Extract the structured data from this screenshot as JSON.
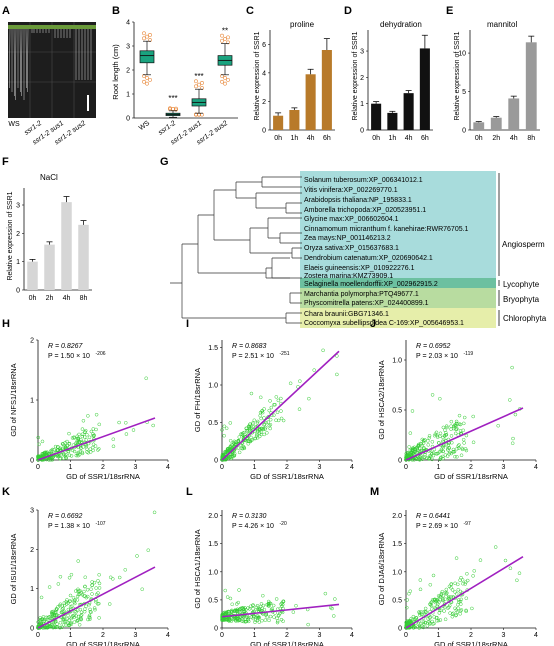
{
  "panels": {
    "A": {
      "letter": "A",
      "labels": [
        "WS",
        "ssr1-2",
        "ssr1-2 sus1",
        "ssr1-2 sus2"
      ]
    },
    "B": {
      "letter": "B",
      "ylabel": "Root length (cm)",
      "yticks": [
        "0",
        "1",
        "2",
        "3",
        "4"
      ],
      "categories": [
        "WS",
        "ssr1-2",
        "ssr1-2 sus1",
        "ssr1-2 sus2"
      ],
      "stars": [
        "",
        "***",
        "***",
        "**"
      ]
    },
    "C": {
      "letter": "C",
      "title": "proline",
      "ylabel": "Relative expression of SSR1",
      "categories": [
        "0h",
        "1h",
        "4h",
        "6h"
      ],
      "yticks": [
        "0",
        "2",
        "4",
        "6"
      ]
    },
    "D": {
      "letter": "D",
      "title": "dehydration",
      "ylabel": "Relative expression of SSR1",
      "categories": [
        "0h",
        "1h",
        "4h",
        "6h"
      ],
      "yticks": [
        "0",
        "1",
        "2",
        "3"
      ]
    },
    "E": {
      "letter": "E",
      "title": "mannitol",
      "ylabel": "Relative expression of SSR1",
      "categories": [
        "0h",
        "2h",
        "4h",
        "8h"
      ],
      "yticks": [
        "0",
        "5",
        "10"
      ]
    },
    "F": {
      "letter": "F",
      "title": "NaCl",
      "ylabel": "Relative expression of SSR1",
      "categories": [
        "0h",
        "2h",
        "4h",
        "8h"
      ],
      "yticks": [
        "0",
        "1",
        "2",
        "3"
      ]
    },
    "G": {
      "letter": "G",
      "species": [
        "Solanum tuberosum:XP_006341012.1",
        "Vitis vinifera:XP_002269770.1",
        "Arabidopsis thaliana:NP_195833.1",
        "Amborella trichopoda:XP_020523951.1",
        "Glycine max:XP_006602604.1",
        "Cinnamomum micranthum f. kanehirae:RWR76705.1",
        "Zea mays:NP_001146213.2",
        "Oryza sativa:XP_015637683.1",
        "Dendrobium catenatum:XP_020690642.1",
        "Elaeis guineensis:XP_010922276.1",
        "Zostera marina:KMZ73909.1",
        "Selaginella moellendorffii:XP_002962915.2",
        "Marchantia polymorpha:PTQ49677.1",
        "Physcomitrella patens:XP_024400899.1",
        "Chara braunii:GBG71346.1",
        "Coccomyxa subellipsoidea C-169:XP_005646953.1"
      ],
      "groups": [
        "Angiosperm",
        "Lycophyte",
        "Bryophyta",
        "Chlorophyta"
      ]
    },
    "H": {
      "letter": "H",
      "r": "R = 0.8267",
      "p": "P = 1.50 × 10",
      "pexp": "-206",
      "ylabel": "GD of NFS1/18srRNA",
      "xlabel": "GD of SSR1/18srRNA",
      "xticks": [
        "0",
        "1",
        "2",
        "3",
        "4"
      ],
      "yticks": [
        "0",
        "1",
        "2"
      ]
    },
    "I": {
      "letter": "I",
      "r": "R = 0.8683",
      "p": "P = 2.51 × 10",
      "pexp": "-251",
      "ylabel": "GD of FH/18srRNA",
      "xlabel": "GD of SSR1/18srRNA",
      "xticks": [
        "0",
        "1",
        "2",
        "3",
        "4"
      ],
      "yticks": [
        "0",
        "0.5",
        "1.0",
        "1.5"
      ]
    },
    "J": {
      "letter": "J",
      "r": "R = 0.6952",
      "p": "P = 2.03 × 10",
      "pexp": "-119",
      "ylabel": "GD of HSCA2/18srRNA",
      "xlabel": "GD of SSR1/18srRNA",
      "xticks": [
        "0",
        "1",
        "2",
        "3",
        "4"
      ],
      "yticks": [
        "0",
        "0.5",
        "1.0"
      ]
    },
    "K": {
      "letter": "K",
      "r": "R = 0.6692",
      "p": "P = 1.38 × 10",
      "pexp": "-107",
      "ylabel": "GD of ISU1/18srRNA",
      "xlabel": "GD of SSR1/18srRNA",
      "xticks": [
        "0",
        "1",
        "2",
        "3",
        "4"
      ],
      "yticks": [
        "0",
        "1",
        "2",
        "3"
      ]
    },
    "L": {
      "letter": "L",
      "r": "R = 0.3130",
      "p": "P = 4.26 × 10",
      "pexp": "-20",
      "ylabel": "GD of HSCA1/18srRNA",
      "xlabel": "GD of SSR1/18srRNA",
      "xticks": [
        "0",
        "1",
        "2",
        "3",
        "4"
      ],
      "yticks": [
        "0",
        "0.5",
        "1.0",
        "1.5",
        "2.0"
      ]
    },
    "M": {
      "letter": "M",
      "r": "R = 0.6441",
      "p": "P = 2.69 × 10",
      "pexp": "-97",
      "ylabel": "GD of DJA6/18srRNA",
      "xlabel": "GD of SSR1/18srRNA",
      "xticks": [
        "0",
        "1",
        "2",
        "3",
        "4"
      ],
      "yticks": [
        "0",
        "0.5",
        "1.0",
        "1.5",
        "2.0"
      ]
    }
  },
  "colors": {
    "teal": "#1aa37f",
    "orange": "#e8883a",
    "brown": "#b87a2a",
    "black": "#111111",
    "grey": "#9a9a9a",
    "lightgrey": "#d6d6d6",
    "scatter": "#33cc33",
    "fit": "#a020c0",
    "angio": "#a8dcdc",
    "lyco": "#6cc0a0",
    "bryo": "#b8dca0",
    "chloro": "#e6eeaa"
  },
  "chart_data": [
    {
      "type": "box",
      "panel": "B",
      "categories": [
        "WS",
        "ssr1-2",
        "ssr1-2 sus1",
        "ssr1-2 sus2"
      ],
      "medians": [
        2.6,
        0.15,
        0.65,
        2.4
      ],
      "q1": [
        2.3,
        0.1,
        0.5,
        2.2
      ],
      "q3": [
        2.8,
        0.2,
        0.8,
        2.6
      ],
      "whisker_low": [
        1.8,
        0.03,
        0.2,
        1.8
      ],
      "whisker_high": [
        3.2,
        0.3,
        1.2,
        3.1
      ],
      "ylim": [
        0,
        4
      ]
    },
    {
      "type": "bar",
      "panel": "C",
      "categories": [
        "0h",
        "1h",
        "4h",
        "6h"
      ],
      "values": [
        1.0,
        1.4,
        3.9,
        5.6
      ],
      "errors": [
        0.2,
        0.15,
        0.35,
        0.8
      ],
      "ylim": [
        0,
        7
      ]
    },
    {
      "type": "bar",
      "panel": "D",
      "categories": [
        "0h",
        "1h",
        "4h",
        "6h"
      ],
      "values": [
        1.0,
        0.65,
        1.4,
        3.1
      ],
      "errors": [
        0.08,
        0.06,
        0.1,
        0.5
      ],
      "ylim": [
        0,
        3.8
      ]
    },
    {
      "type": "bar",
      "panel": "E",
      "categories": [
        "0h",
        "2h",
        "4h",
        "8h"
      ],
      "values": [
        1.0,
        1.6,
        4.1,
        11.4
      ],
      "errors": [
        0.1,
        0.15,
        0.3,
        0.8
      ],
      "ylim": [
        0,
        13
      ]
    },
    {
      "type": "bar",
      "panel": "F",
      "categories": [
        "0h",
        "2h",
        "4h",
        "8h"
      ],
      "values": [
        1.0,
        1.6,
        3.1,
        2.3
      ],
      "errors": [
        0.08,
        0.1,
        0.2,
        0.15
      ],
      "ylim": [
        0,
        3.6
      ]
    },
    {
      "type": "scatter",
      "panel": "H",
      "fit": [
        [
          0,
          0
        ],
        [
          3.6,
          0.7
        ]
      ],
      "xlim": [
        0,
        4
      ],
      "ylim": [
        0,
        2
      ]
    },
    {
      "type": "scatter",
      "panel": "I",
      "fit": [
        [
          0,
          0
        ],
        [
          3.6,
          1.45
        ]
      ],
      "xlim": [
        0,
        4
      ],
      "ylim": [
        0,
        1.6
      ]
    },
    {
      "type": "scatter",
      "panel": "J",
      "fit": [
        [
          0,
          0
        ],
        [
          3.6,
          0.52
        ]
      ],
      "xlim": [
        0,
        4
      ],
      "ylim": [
        0,
        1.2
      ]
    },
    {
      "type": "scatter",
      "panel": "K",
      "fit": [
        [
          0,
          0
        ],
        [
          3.6,
          1.55
        ]
      ],
      "xlim": [
        0,
        4
      ],
      "ylim": [
        0,
        3
      ]
    },
    {
      "type": "scatter",
      "panel": "L",
      "fit": [
        [
          0,
          0.2
        ],
        [
          3.6,
          0.42
        ]
      ],
      "xlim": [
        0,
        4
      ],
      "ylim": [
        0,
        2.1
      ]
    },
    {
      "type": "scatter",
      "panel": "M",
      "fit": [
        [
          0,
          0
        ],
        [
          3.6,
          1.27
        ]
      ],
      "xlim": [
        0,
        4
      ],
      "ylim": [
        0,
        2.1
      ]
    }
  ]
}
